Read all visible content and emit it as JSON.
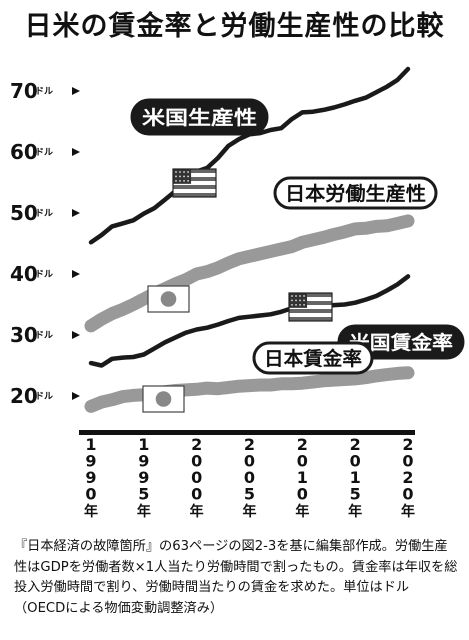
{
  "chart_data": {
    "type": "line",
    "title": "日米の賃金率と労働生産性の比較",
    "x": [
      1990,
      1991,
      1992,
      1993,
      1994,
      1995,
      1996,
      1997,
      1998,
      1999,
      2000,
      2001,
      2002,
      2003,
      2004,
      2005,
      2006,
      2007,
      2008,
      2009,
      2010,
      2011,
      2012,
      2013,
      2014,
      2015,
      2016,
      2017,
      2018,
      2019,
      2020
    ],
    "x_tick_labels": [
      {
        "value": 1990,
        "chars": [
          "1",
          "9",
          "9",
          "0",
          "年"
        ]
      },
      {
        "value": 1995,
        "chars": [
          "1",
          "9",
          "9",
          "5",
          "年"
        ]
      },
      {
        "value": 2000,
        "chars": [
          "2",
          "0",
          "0",
          "0",
          "年"
        ]
      },
      {
        "value": 2005,
        "chars": [
          "2",
          "0",
          "0",
          "5",
          "年"
        ]
      },
      {
        "value": 2010,
        "chars": [
          "2",
          "0",
          "1",
          "0",
          "年"
        ]
      },
      {
        "value": 2015,
        "chars": [
          "2",
          "0",
          "1",
          "5",
          "年"
        ]
      },
      {
        "value": 2020,
        "chars": [
          "2",
          "0",
          "2",
          "0",
          "年"
        ]
      }
    ],
    "y_ticks": [
      {
        "value": 20,
        "num": "20",
        "unit": "ドル"
      },
      {
        "value": 30,
        "num": "30",
        "unit": "ドル"
      },
      {
        "value": 40,
        "num": "40",
        "unit": "ドル"
      },
      {
        "value": 50,
        "num": "50",
        "unit": "ドル"
      },
      {
        "value": 60,
        "num": "60",
        "unit": "ドル"
      },
      {
        "value": 70,
        "num": "70",
        "unit": "ドル"
      }
    ],
    "xlim": [
      1990,
      2020
    ],
    "ylim": [
      15,
      74
    ],
    "series": [
      {
        "name": "米国生産性",
        "color": "#1a1a1a",
        "style": "dark",
        "values": [
          45.2,
          46.4,
          47.8,
          48.3,
          48.8,
          49.9,
          50.8,
          52.2,
          53.6,
          55.2,
          56.8,
          57.4,
          59.0,
          61.0,
          62.1,
          62.9,
          63.1,
          63.6,
          63.9,
          65.4,
          66.5,
          66.6,
          66.9,
          67.3,
          67.8,
          68.4,
          68.9,
          69.8,
          70.7,
          71.8,
          73.6
        ]
      },
      {
        "name": "日本労働生産性",
        "color": "#999999",
        "style": "light",
        "values": [
          31.5,
          32.6,
          33.5,
          34.2,
          35.0,
          35.9,
          36.8,
          37.6,
          38.4,
          39.1,
          40.0,
          40.4,
          41.0,
          41.8,
          42.5,
          42.9,
          43.3,
          43.7,
          44.1,
          44.5,
          45.2,
          45.6,
          46.0,
          46.5,
          46.9,
          47.4,
          47.5,
          47.8,
          47.9,
          48.3,
          48.7
        ]
      },
      {
        "name": "米国賃金率",
        "color": "#1a1a1a",
        "style": "dark",
        "values": [
          25.4,
          25.0,
          26.1,
          26.3,
          26.4,
          26.8,
          27.8,
          28.8,
          29.6,
          30.4,
          30.9,
          31.2,
          31.7,
          32.3,
          32.8,
          33.0,
          33.2,
          33.4,
          33.8,
          34.4,
          34.4,
          34.5,
          34.7,
          34.9,
          35.0,
          35.3,
          35.8,
          36.4,
          37.3,
          38.3,
          39.6
        ]
      },
      {
        "name": "日本賃金率",
        "color": "#999999",
        "style": "light",
        "values": [
          18.3,
          19.0,
          19.4,
          19.9,
          20.1,
          20.2,
          20.4,
          20.7,
          20.9,
          21.0,
          21.1,
          21.3,
          21.2,
          21.4,
          21.6,
          21.7,
          21.8,
          21.8,
          22.0,
          22.0,
          22.1,
          22.3,
          22.5,
          22.6,
          22.7,
          22.8,
          23.0,
          23.3,
          23.5,
          23.7,
          23.8
        ]
      }
    ]
  },
  "note": "『日本経済の故障箇所』の63ページの図2-3を基に編集部作成。労働生産性はGDPを労働者数×1人当たり労働時間で割ったもの。賃金率は年収を総投入労働時間で割り、労働時間当たりの賃金を求めた。単位はドル（OECDによる物価変動調整済み）"
}
